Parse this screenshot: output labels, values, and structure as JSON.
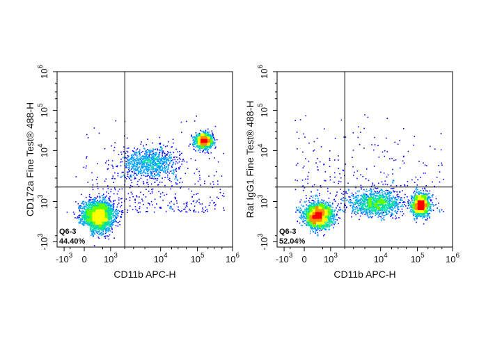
{
  "chart_data": [
    {
      "type": "scatter",
      "subtype": "flow-cytometry-density-dot-plot",
      "xlabel": "CD11b APC-H",
      "ylabel": "CD172a Fine Test® 488-H",
      "x_scale": "biexponential",
      "y_scale": "biexponential",
      "xlim": [
        -1500,
        1000000
      ],
      "ylim": [
        -1200,
        1000000
      ],
      "x_ticks": [
        {
          "value": -1000,
          "base": "-10",
          "exp": "3"
        },
        {
          "value": 0,
          "base": "0",
          "exp": ""
        },
        {
          "value": 1000,
          "base": "10",
          "exp": "3"
        },
        {
          "value": 10000,
          "base": "10",
          "exp": "4"
        },
        {
          "value": 100000,
          "base": "10",
          "exp": "5"
        },
        {
          "value": 1000000,
          "base": "10",
          "exp": "6"
        }
      ],
      "y_ticks": [
        {
          "value": -1000,
          "base": "-10",
          "exp": "3"
        },
        {
          "value": 1000,
          "base": "10",
          "exp": "3"
        },
        {
          "value": 10000,
          "base": "10",
          "exp": "4"
        },
        {
          "value": 100000,
          "base": "10",
          "exp": "5"
        },
        {
          "value": 1000000,
          "base": "10",
          "exp": "6"
        }
      ],
      "quadrant_gate": {
        "x": 2000,
        "y": 2000
      },
      "gate_label": "Q6-3",
      "gate_percent": "44.40%",
      "populations": [
        {
          "x": 300,
          "y": 150,
          "count": 2600,
          "spread_x": 0.55,
          "spread_y": 0.55
        },
        {
          "x": 150000,
          "y": 18000,
          "count": 1300,
          "spread_x": 0.3,
          "spread_y": 0.25
        },
        {
          "x": 6000,
          "y": 6000,
          "count": 900,
          "spread_x": 1.0,
          "spread_y": 0.55
        }
      ],
      "grid": false,
      "legend": "none"
    },
    {
      "type": "scatter",
      "subtype": "flow-cytometry-density-dot-plot",
      "xlabel": "CD11b APC-H",
      "ylabel": "Rat IgG1 Fine Test® 488-H",
      "x_scale": "biexponential",
      "y_scale": "biexponential",
      "xlim": [
        -1500,
        1000000
      ],
      "ylim": [
        -1200,
        1000000
      ],
      "x_ticks": [
        {
          "value": -1000,
          "base": "-10",
          "exp": "3"
        },
        {
          "value": 0,
          "base": "0",
          "exp": ""
        },
        {
          "value": 1000,
          "base": "10",
          "exp": "3"
        },
        {
          "value": 10000,
          "base": "10",
          "exp": "4"
        },
        {
          "value": 100000,
          "base": "10",
          "exp": "5"
        },
        {
          "value": 1000000,
          "base": "10",
          "exp": "6"
        }
      ],
      "y_ticks": [
        {
          "value": -1000,
          "base": "-10",
          "exp": "3"
        },
        {
          "value": 1000,
          "base": "10",
          "exp": "3"
        },
        {
          "value": 10000,
          "base": "10",
          "exp": "4"
        },
        {
          "value": 100000,
          "base": "10",
          "exp": "5"
        },
        {
          "value": 1000000,
          "base": "10",
          "exp": "6"
        }
      ],
      "quadrant_gate": {
        "x": 2000,
        "y": 2000
      },
      "gate_label": "Q6-3",
      "gate_percent": "52.04%",
      "populations": [
        {
          "x": 300,
          "y": 150,
          "count": 2300,
          "spread_x": 0.5,
          "spread_y": 0.45
        },
        {
          "x": 120000,
          "y": 700,
          "count": 1400,
          "spread_x": 0.3,
          "spread_y": 0.4
        },
        {
          "x": 8000,
          "y": 900,
          "count": 1100,
          "spread_x": 0.9,
          "spread_y": 0.45
        }
      ],
      "grid": false,
      "legend": "none"
    }
  ],
  "colors": {
    "density_scale": [
      "#0000ff",
      "#00a0ff",
      "#00e0a0",
      "#60ff00",
      "#ffff00",
      "#ff9000",
      "#ff0000"
    ],
    "axis": "#000000",
    "gate_line": "#000000"
  }
}
